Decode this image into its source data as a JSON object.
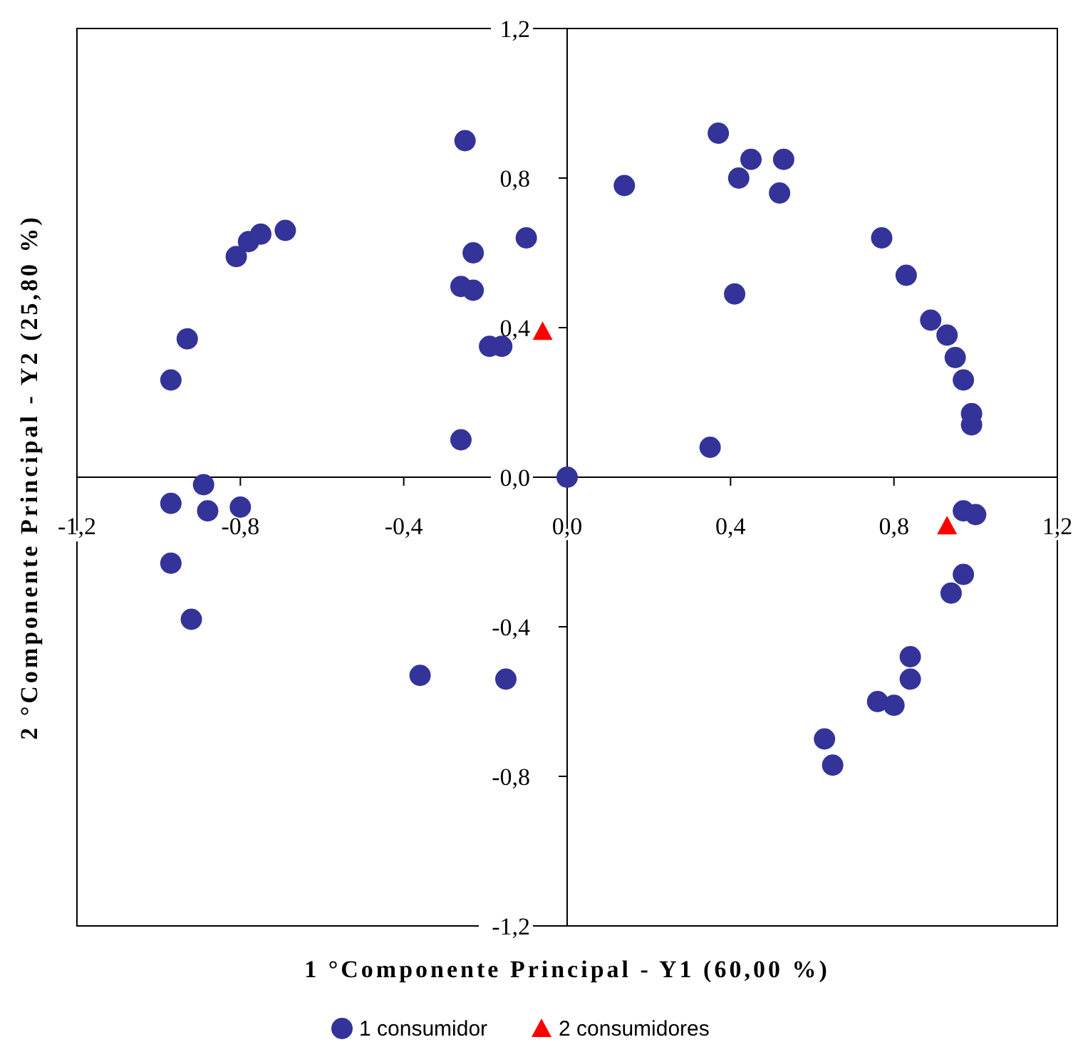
{
  "chart_data": {
    "type": "scatter",
    "xlabel": "1 °Componente Principal - Y1 (60,00 %)",
    "ylabel": "2 °Componente Principal - Y2 (25,80 %)",
    "xlim": [
      -1.2,
      1.2
    ],
    "ylim": [
      -1.2,
      1.2
    ],
    "xticks": [
      {
        "value": -1.2,
        "label": "-1,2"
      },
      {
        "value": -0.8,
        "label": "-0,8"
      },
      {
        "value": -0.4,
        "label": "-0,4"
      },
      {
        "value": 0,
        "label": "0,0"
      },
      {
        "value": 0.4,
        "label": "0,4"
      },
      {
        "value": 0.8,
        "label": "0,8"
      },
      {
        "value": 1.2,
        "label": "1,2"
      }
    ],
    "yticks": [
      {
        "value": -1.2,
        "label": "-1,2"
      },
      {
        "value": -0.8,
        "label": "-0,8"
      },
      {
        "value": -0.4,
        "label": "-0,4"
      },
      {
        "value": 0,
        "label": "0,0"
      },
      {
        "value": 0.4,
        "label": "0,4"
      },
      {
        "value": 0.8,
        "label": "0,8"
      },
      {
        "value": 1.2,
        "label": "1,2"
      }
    ],
    "grid": false,
    "legend": "bottom",
    "series": [
      {
        "name": "1 consumidor",
        "color": "#333399",
        "marker": "circle",
        "x": [
          -0.25,
          -0.81,
          -0.78,
          -0.75,
          -0.69,
          -0.93,
          -0.97,
          -0.1,
          -0.23,
          -0.26,
          -0.23,
          -0.19,
          -0.16,
          -0.26,
          0,
          -0.89,
          -0.97,
          -0.88,
          -0.8,
          -0.97,
          -0.92,
          -0.36,
          -0.15,
          0.14,
          0.37,
          0.45,
          0.42,
          0.53,
          0.52,
          0.77,
          0.83,
          0.89,
          0.93,
          0.95,
          0.97,
          0.99,
          0.99,
          0.41,
          0.35,
          0.97,
          1.0,
          0.97,
          0.94,
          0.84,
          0.84,
          0.76,
          0.8,
          0.63,
          0.65
        ],
        "values": [
          0.9,
          0.59,
          0.63,
          0.65,
          0.66,
          0.37,
          0.26,
          0.64,
          0.6,
          0.51,
          0.5,
          0.35,
          0.35,
          0.1,
          0,
          -0.02,
          -0.07,
          -0.09,
          -0.08,
          -0.23,
          -0.38,
          -0.53,
          -0.54,
          0.78,
          0.92,
          0.85,
          0.8,
          0.85,
          0.76,
          0.64,
          0.54,
          0.42,
          0.38,
          0.32,
          0.26,
          0.17,
          0.14,
          0.49,
          0.08,
          -0.09,
          -0.1,
          -0.26,
          -0.31,
          -0.48,
          -0.54,
          -0.6,
          -0.61,
          -0.7,
          -0.77
        ]
      },
      {
        "name": "2 consumidores",
        "color": "#ff0000",
        "marker": "triangle",
        "x": [
          -0.06,
          0.93
        ],
        "values": [
          0.39,
          -0.13
        ]
      }
    ]
  }
}
